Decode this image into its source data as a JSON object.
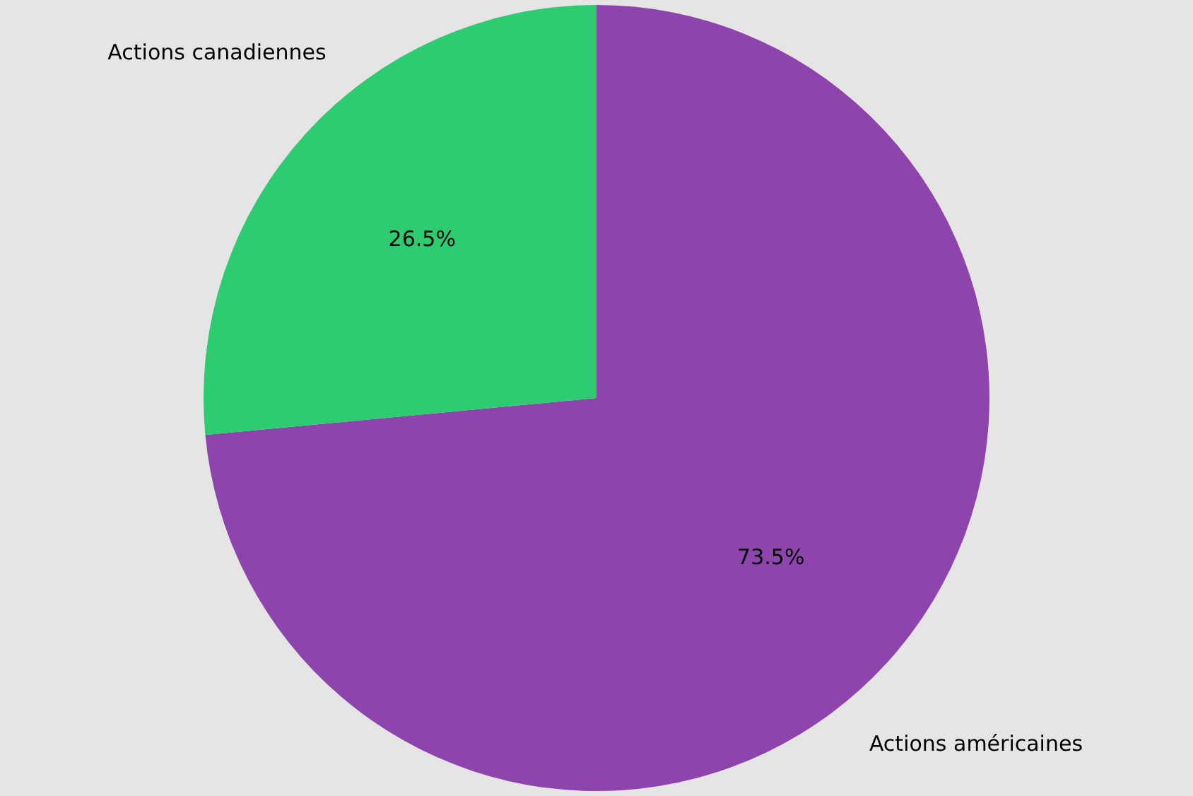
{
  "chart_data": {
    "type": "pie",
    "categories": [
      "Actions américaines",
      "Actions canadiennes"
    ],
    "values": [
      73.5,
      26.5
    ],
    "colors": [
      "#8e44ad",
      "#2ecc71"
    ],
    "value_labels": [
      "73.5%",
      "26.5%"
    ]
  }
}
